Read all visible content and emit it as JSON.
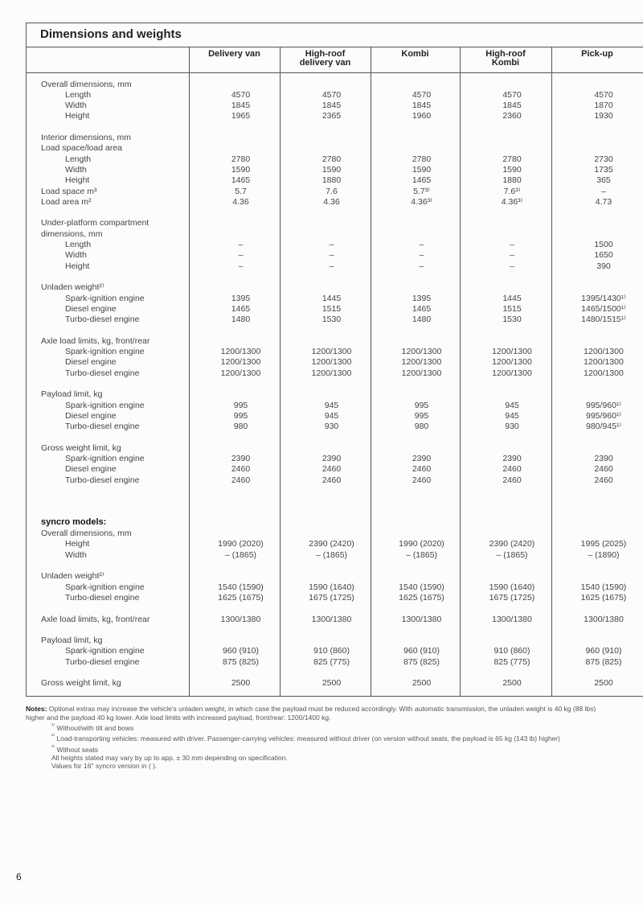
{
  "title": "Dimensions and weights",
  "columns": [
    "Delivery van",
    "High-roof\ndelivery van",
    "Kombi",
    "High-roof\nKombi",
    "Pick-up"
  ],
  "sections": [
    {
      "rows": [
        {
          "label": "Overall dimensions, mm"
        },
        {
          "label": "Length",
          "indent": true,
          "values": [
            "4570",
            "4570",
            "4570",
            "4570",
            "4570"
          ]
        },
        {
          "label": "Width",
          "indent": true,
          "values": [
            "1845",
            "1845",
            "1845",
            "1845",
            "1870"
          ]
        },
        {
          "label": "Height",
          "indent": true,
          "values": [
            "1965",
            "2365",
            "1960",
            "2360",
            "1930"
          ]
        }
      ]
    },
    {
      "rows": [
        {
          "label": "Interior dimensions, mm"
        },
        {
          "label": "Load space/load area"
        },
        {
          "label": "Length",
          "indent": true,
          "values": [
            "2780",
            "2780",
            "2780",
            "2780",
            "2730"
          ]
        },
        {
          "label": "Width",
          "indent": true,
          "values": [
            "1590",
            "1590",
            "1590",
            "1590",
            "1735"
          ]
        },
        {
          "label": "Height",
          "indent": true,
          "values": [
            "1465",
            "1880",
            "1465",
            "1880",
            "365"
          ]
        },
        {
          "label": "Load space m³",
          "values": [
            "5.7",
            "7.6",
            "5.7³⁾",
            "7.6³⁾",
            "–"
          ]
        },
        {
          "label": "Load area m²",
          "values": [
            "4.36",
            "4.36",
            "4.36³⁾",
            "4.36³⁾",
            "4.73"
          ]
        }
      ]
    },
    {
      "rows": [
        {
          "label": "Under-platform compartment"
        },
        {
          "label": "dimensions, mm"
        },
        {
          "label": "Length",
          "indent": true,
          "values": [
            "–",
            "–",
            "–",
            "–",
            "1500"
          ]
        },
        {
          "label": "Width",
          "indent": true,
          "values": [
            "–",
            "–",
            "–",
            "–",
            "1650"
          ]
        },
        {
          "label": "Height",
          "indent": true,
          "values": [
            "–",
            "–",
            "–",
            "–",
            "390"
          ]
        }
      ]
    },
    {
      "rows": [
        {
          "label": "Unladen weight²⁾"
        },
        {
          "label": "Spark-ignition engine",
          "indent": true,
          "values": [
            "1395",
            "1445",
            "1395",
            "1445",
            "1395/1430¹⁾"
          ]
        },
        {
          "label": "Diesel engine",
          "indent": true,
          "values": [
            "1465",
            "1515",
            "1465",
            "1515",
            "1465/1500¹⁾"
          ]
        },
        {
          "label": "Turbo-diesel engine",
          "indent": true,
          "values": [
            "1480",
            "1530",
            "1480",
            "1530",
            "1480/1515¹⁾"
          ]
        }
      ]
    },
    {
      "rows": [
        {
          "label": "Axle load limits, kg, front/rear"
        },
        {
          "label": "Spark-ignition engine",
          "indent": true,
          "values": [
            "1200/1300",
            "1200/1300",
            "1200/1300",
            "1200/1300",
            "1200/1300"
          ]
        },
        {
          "label": "Diesel engine",
          "indent": true,
          "values": [
            "1200/1300",
            "1200/1300",
            "1200/1300",
            "1200/1300",
            "1200/1300"
          ]
        },
        {
          "label": "Turbo-diesel engine",
          "indent": true,
          "values": [
            "1200/1300",
            "1200/1300",
            "1200/1300",
            "1200/1300",
            "1200/1300"
          ]
        }
      ]
    },
    {
      "rows": [
        {
          "label": "Payload limit, kg"
        },
        {
          "label": "Spark-ignition engine",
          "indent": true,
          "values": [
            "995",
            "945",
            "995",
            "945",
            "995/960¹⁾"
          ]
        },
        {
          "label": "Diesel engine",
          "indent": true,
          "values": [
            "995",
            "945",
            "995",
            "945",
            "995/960¹⁾"
          ]
        },
        {
          "label": "Turbo-diesel engine",
          "indent": true,
          "values": [
            "980",
            "930",
            "980",
            "930",
            "980/945¹⁾"
          ]
        }
      ]
    },
    {
      "rows": [
        {
          "label": "Gross weight limit, kg"
        },
        {
          "label": "Spark-ignition engine",
          "indent": true,
          "values": [
            "2390",
            "2390",
            "2390",
            "2390",
            "2390"
          ]
        },
        {
          "label": "Diesel engine",
          "indent": true,
          "values": [
            "2460",
            "2460",
            "2460",
            "2460",
            "2460"
          ]
        },
        {
          "label": "Turbo-diesel engine",
          "indent": true,
          "values": [
            "2460",
            "2460",
            "2460",
            "2460",
            "2460"
          ]
        }
      ]
    },
    {
      "heading": "syncro models:",
      "rows": [
        {
          "label": "Overall dimensions, mm"
        },
        {
          "label": "Height",
          "indent": true,
          "values": [
            "1990 (2020)",
            "2390 (2420)",
            "1990 (2020)",
            "2390 (2420)",
            "1995 (2025)"
          ]
        },
        {
          "label": "Width",
          "indent": true,
          "values": [
            "– (1865)",
            "– (1865)",
            "– (1865)",
            "– (1865)",
            "– (1890)"
          ]
        }
      ]
    },
    {
      "rows": [
        {
          "label": "Unladen weight²⁾"
        },
        {
          "label": "Spark-ignition engine",
          "indent": true,
          "values": [
            "1540 (1590)",
            "1590 (1640)",
            "1540 (1590)",
            "1590 (1640)",
            "1540 (1590)"
          ]
        },
        {
          "label": "Turbo-diesel engine",
          "indent": true,
          "values": [
            "1625 (1675)",
            "1675 (1725)",
            "1625 (1675)",
            "1675 (1725)",
            "1625 (1675)"
          ]
        }
      ]
    },
    {
      "rows": [
        {
          "label": "Axle load limits, kg, front/rear",
          "values": [
            "1300/1380",
            "1300/1380",
            "1300/1380",
            "1300/1380",
            "1300/1380"
          ]
        }
      ]
    },
    {
      "rows": [
        {
          "label": "Payload limit, kg"
        },
        {
          "label": "Spark-ignition engine",
          "indent": true,
          "values": [
            "960 (910)",
            "910 (860)",
            "960 (910)",
            "910 (860)",
            "960 (910)"
          ]
        },
        {
          "label": "Turbo-diesel engine",
          "indent": true,
          "values": [
            "875 (825)",
            "825 (775)",
            "875 (825)",
            "825 (775)",
            "875 (825)"
          ]
        }
      ]
    },
    {
      "rows": [
        {
          "label": "Gross weight limit, kg",
          "values": [
            "2500",
            "2500",
            "2500",
            "2500",
            "2500"
          ]
        }
      ]
    }
  ],
  "notes": {
    "label": "Notes:",
    "text": "Optional extras may increase the vehicle's unladen weight, in which case the payload must be reduced accordingly. With automatic transmission, the unladen weight is 40 kg (88 lbs) higher and the payload 40 kg lower. Axle load limits with increased payload, front/rear: 1200/1400 kg.",
    "footnotes": [
      {
        "mark": "¹⁾",
        "text": "Without/with tilt and bows"
      },
      {
        "mark": "²⁾",
        "text": "Load-transporting vehicles: measured with driver. Passenger-carrying vehicles: measured without driver (on version without seats, the payload is 65 kg (143 lb) higher)"
      },
      {
        "mark": "³⁾",
        "text": "Without seats"
      }
    ],
    "lines": [
      "All heights stated may vary by up to app. ± 30 mm depending on specification.",
      "Values for 16\" syncro version in ( )."
    ]
  },
  "page_number": "6"
}
